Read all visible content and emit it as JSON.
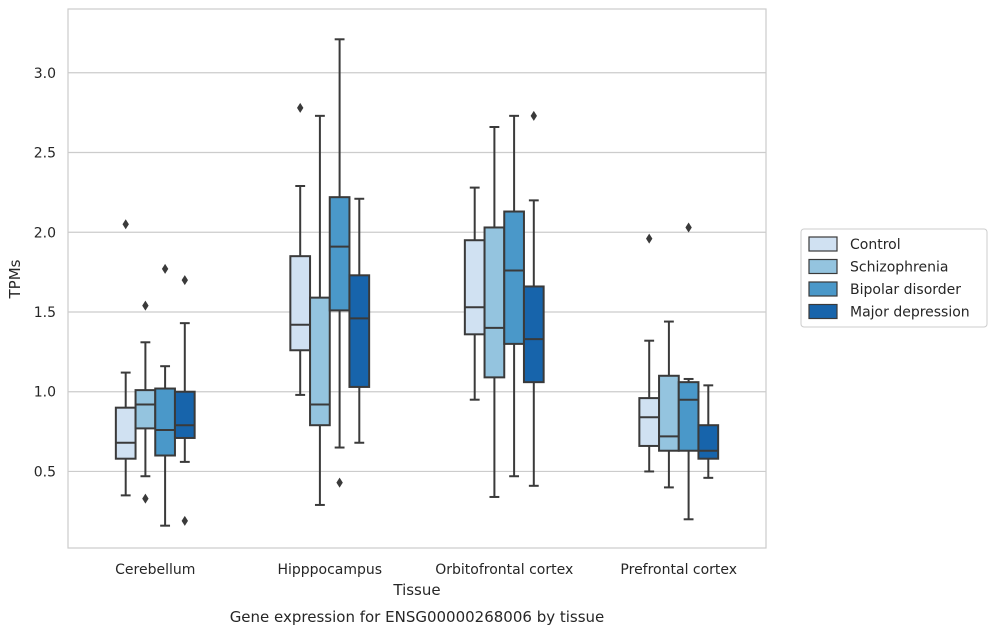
{
  "chart_data": {
    "type": "box",
    "title": "",
    "caption": "Gene expression for ENSG00000268006 by tissue",
    "xlabel": "Tissue",
    "ylabel": "TPMs",
    "ylim": [
      0.02,
      3.4
    ],
    "yticks": [
      0.5,
      1.0,
      1.5,
      2.0,
      2.5,
      3.0
    ],
    "ytick_labels": [
      "0.5",
      "1.0",
      "1.5",
      "2.0",
      "2.5",
      "3.0"
    ],
    "grid": true,
    "legend_position": "right",
    "categories": [
      "Cerebellum",
      "Hipppocampus",
      "Orbitofrontal cortex",
      "Prefrontal cortex"
    ],
    "series": [
      {
        "name": "Control",
        "color": "#d0e1f2",
        "boxes": [
          {
            "whisker_low": 0.35,
            "q1": 0.58,
            "median": 0.68,
            "q3": 0.9,
            "whisker_high": 1.12,
            "outliers": [
              2.05
            ]
          },
          {
            "whisker_low": 0.98,
            "q1": 1.26,
            "median": 1.42,
            "q3": 1.85,
            "whisker_high": 2.29,
            "outliers": [
              2.78
            ]
          },
          {
            "whisker_low": 0.95,
            "q1": 1.36,
            "median": 1.53,
            "q3": 1.95,
            "whisker_high": 2.28,
            "outliers": []
          },
          {
            "whisker_low": 0.5,
            "q1": 0.66,
            "median": 0.84,
            "q3": 0.96,
            "whisker_high": 1.32,
            "outliers": [
              1.96
            ]
          }
        ]
      },
      {
        "name": "Schizophrenia",
        "color": "#94c4df",
        "boxes": [
          {
            "whisker_low": 0.47,
            "q1": 0.77,
            "median": 0.92,
            "q3": 1.01,
            "whisker_high": 1.31,
            "outliers": [
              1.54,
              0.33
            ]
          },
          {
            "whisker_low": 0.29,
            "q1": 0.79,
            "median": 0.92,
            "q3": 1.59,
            "whisker_high": 2.73,
            "outliers": []
          },
          {
            "whisker_low": 0.34,
            "q1": 1.09,
            "median": 1.4,
            "q3": 2.03,
            "whisker_high": 2.66,
            "outliers": []
          },
          {
            "whisker_low": 0.4,
            "q1": 0.63,
            "median": 0.72,
            "q3": 1.1,
            "whisker_high": 1.44,
            "outliers": []
          }
        ]
      },
      {
        "name": "Bipolar disorder",
        "color": "#4a98c9",
        "boxes": [
          {
            "whisker_low": 0.16,
            "q1": 0.6,
            "median": 0.76,
            "q3": 1.02,
            "whisker_high": 1.16,
            "outliers": [
              1.77
            ]
          },
          {
            "whisker_low": 0.65,
            "q1": 1.51,
            "median": 1.91,
            "q3": 2.22,
            "whisker_high": 3.21,
            "outliers": [
              0.43
            ]
          },
          {
            "whisker_low": 0.47,
            "q1": 1.3,
            "median": 1.76,
            "q3": 2.13,
            "whisker_high": 2.73,
            "outliers": []
          },
          {
            "whisker_low": 0.2,
            "q1": 0.63,
            "median": 0.95,
            "q3": 1.06,
            "whisker_high": 1.08,
            "outliers": [
              2.03
            ]
          }
        ]
      },
      {
        "name": "Major depression",
        "color": "#1764ab",
        "boxes": [
          {
            "whisker_low": 0.56,
            "q1": 0.71,
            "median": 0.79,
            "q3": 1.0,
            "whisker_high": 1.43,
            "outliers": [
              1.7,
              0.19
            ]
          },
          {
            "whisker_low": 0.68,
            "q1": 1.03,
            "median": 1.46,
            "q3": 1.73,
            "whisker_high": 2.21,
            "outliers": []
          },
          {
            "whisker_low": 0.41,
            "q1": 1.06,
            "median": 1.33,
            "q3": 1.66,
            "whisker_high": 2.2,
            "outliers": [
              2.73
            ]
          },
          {
            "whisker_low": 0.46,
            "q1": 0.58,
            "median": 0.63,
            "q3": 0.79,
            "whisker_high": 1.04,
            "outliers": []
          }
        ]
      }
    ]
  }
}
